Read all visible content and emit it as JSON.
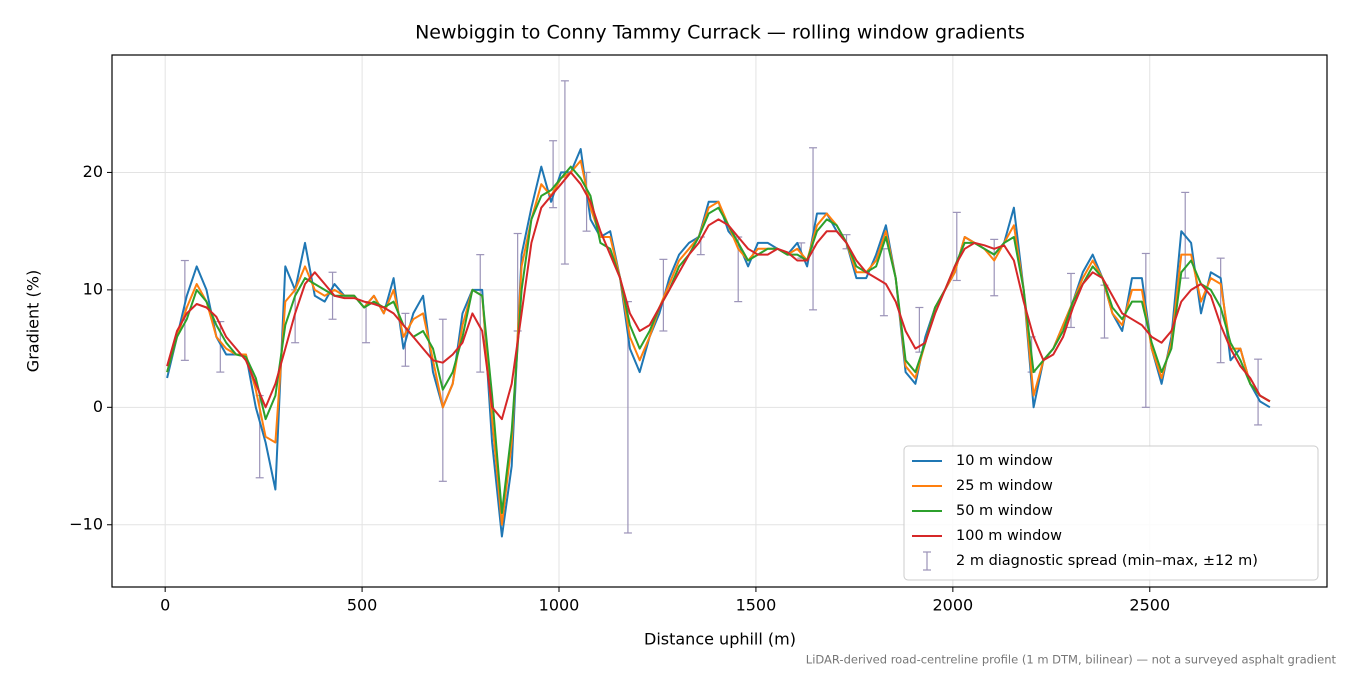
{
  "chart_data": {
    "type": "line",
    "title": "Newbiggin to Conny Tammy Currack — rolling window gradients",
    "x_label": "Distance uphill (m)",
    "y_label": "Gradient (%)",
    "footnote": "LiDAR-derived road-centreline profile (1 m DTM, bilinear) — not a surveyed asphalt gradient",
    "xlim": [
      -135,
      2950
    ],
    "ylim": [
      -15.3,
      30
    ],
    "xticks": [
      0,
      500,
      1000,
      1500,
      2000,
      2500
    ],
    "yticks": [
      {
        "value": -10,
        "label": "−10"
      },
      0,
      10,
      20
    ],
    "grid": true,
    "legend": "lower right",
    "x": [
      5,
      30,
      55,
      80,
      105,
      130,
      155,
      180,
      205,
      230,
      255,
      280,
      305,
      330,
      355,
      380,
      405,
      430,
      455,
      480,
      505,
      530,
      555,
      580,
      605,
      630,
      655,
      680,
      705,
      730,
      755,
      780,
      805,
      830,
      855,
      880,
      905,
      930,
      955,
      980,
      1005,
      1030,
      1055,
      1080,
      1105,
      1130,
      1155,
      1180,
      1205,
      1230,
      1255,
      1280,
      1305,
      1330,
      1355,
      1380,
      1405,
      1430,
      1455,
      1480,
      1505,
      1530,
      1555,
      1580,
      1605,
      1630,
      1655,
      1680,
      1705,
      1730,
      1755,
      1780,
      1805,
      1830,
      1855,
      1880,
      1905,
      1930,
      1955,
      1980,
      2005,
      2030,
      2055,
      2080,
      2105,
      2130,
      2155,
      2180,
      2205,
      2230,
      2255,
      2280,
      2305,
      2330,
      2355,
      2380,
      2405,
      2430,
      2455,
      2480,
      2505,
      2530,
      2555,
      2580,
      2605,
      2630,
      2655,
      2680,
      2705,
      2730,
      2755,
      2780,
      2805
    ],
    "series": [
      {
        "name": "10 m window",
        "color": "#1f77b4",
        "values": [
          2.5,
          6,
          9.5,
          12,
          10,
          6,
          4.5,
          4.5,
          4.5,
          0,
          -3,
          -7,
          12,
          10,
          14,
          9.5,
          9,
          10.5,
          9.5,
          9.5,
          8.5,
          9.5,
          8,
          11,
          5,
          8,
          9.5,
          3,
          0,
          2,
          8,
          10,
          10,
          -3,
          -11,
          -5,
          13,
          17,
          20.5,
          17.5,
          20,
          20,
          22,
          16,
          14.5,
          15,
          11,
          5,
          3,
          6,
          8,
          11,
          13,
          14,
          14.5,
          17.5,
          17.5,
          15,
          14,
          12,
          14,
          14,
          13.5,
          13,
          14,
          12,
          16.5,
          16.5,
          15,
          14,
          11,
          11,
          13,
          15.5,
          11,
          3,
          2,
          6,
          8.5,
          10,
          11.5,
          14.5,
          14,
          13.5,
          13,
          14,
          17,
          10,
          0,
          4,
          5,
          7,
          9,
          11.5,
          13,
          11,
          8,
          6.5,
          11,
          11,
          5,
          2,
          6,
          15,
          14,
          8,
          11.5,
          11,
          4,
          5,
          2,
          0.5,
          0
        ]
      },
      {
        "name": "25 m window",
        "color": "#ff7f0e",
        "values": [
          3,
          6,
          8.5,
          10.5,
          9,
          6,
          5,
          4.5,
          4.5,
          1.5,
          -2.5,
          -3,
          9,
          10,
          12,
          10,
          9.5,
          10,
          9.5,
          9.5,
          8.5,
          9.5,
          8,
          10,
          6,
          7.5,
          8,
          4,
          0,
          2,
          7,
          10,
          9.5,
          -1,
          -10,
          -3,
          12,
          16,
          19,
          18,
          19.5,
          20,
          21,
          17,
          14.5,
          14.5,
          11,
          6,
          4,
          6,
          8.5,
          10.5,
          12.5,
          13.5,
          14.5,
          17,
          17.5,
          15.5,
          13.5,
          12.5,
          13.5,
          13.5,
          13.5,
          13,
          13.5,
          12.5,
          15.5,
          16.5,
          15.5,
          14,
          11.5,
          11.5,
          12.5,
          15,
          11,
          3.5,
          2.5,
          5.5,
          8.5,
          10,
          11.5,
          14.5,
          14,
          13.5,
          12.5,
          14,
          15.5,
          10,
          1,
          4,
          5,
          7,
          9,
          11,
          12.5,
          11,
          8,
          7,
          10,
          10,
          5,
          2.5,
          5.5,
          13,
          13,
          9,
          11,
          10.5,
          5,
          5,
          2,
          1,
          0.5
        ]
      },
      {
        "name": "50 m window",
        "color": "#2ca02c",
        "values": [
          3,
          6,
          7.5,
          10,
          9,
          7,
          5.5,
          4.5,
          4.3,
          2.5,
          -1,
          1,
          7,
          9.5,
          11,
          10.5,
          10,
          9.5,
          9.5,
          9.5,
          8.5,
          9,
          8.5,
          9,
          7,
          6,
          6.5,
          5,
          1.5,
          3,
          6,
          10,
          9.5,
          1,
          -9,
          -2,
          10,
          16,
          18,
          18.5,
          19.5,
          20.5,
          19.5,
          18,
          14,
          13.5,
          11,
          7,
          5,
          6.5,
          8.5,
          10,
          12,
          13,
          14.5,
          16.5,
          17,
          15.5,
          14,
          12.5,
          13,
          13.5,
          13.5,
          13,
          13,
          12.5,
          15,
          16,
          15.5,
          14,
          12,
          11.5,
          12,
          14.5,
          11,
          4,
          3,
          5.5,
          8.5,
          10,
          12,
          14,
          14,
          13.5,
          13,
          14,
          14.5,
          10,
          3,
          4,
          5,
          6.5,
          9,
          10.5,
          12,
          11,
          8.5,
          7.5,
          9,
          9,
          5.5,
          3,
          5,
          11.5,
          12.5,
          10.5,
          10,
          8.5,
          5.5,
          4,
          2,
          1,
          0.5
        ]
      },
      {
        "name": "100 m window",
        "color": "#d62728",
        "values": [
          3.5,
          6.5,
          8,
          8.8,
          8.5,
          7.7,
          6,
          5,
          4,
          2,
          0,
          2,
          5,
          8,
          10.5,
          11.5,
          10.5,
          9.5,
          9.3,
          9.3,
          9,
          8.8,
          8.5,
          8,
          7,
          6,
          5,
          4,
          3.8,
          4.5,
          5.5,
          8,
          6.5,
          0,
          -1,
          2,
          8,
          14,
          17,
          18,
          19,
          20,
          19,
          17.5,
          15,
          13,
          11,
          8,
          6.5,
          7,
          8.5,
          10,
          11.5,
          13,
          14,
          15.5,
          16,
          15.5,
          14.5,
          13.5,
          13,
          13,
          13.5,
          13.2,
          12.5,
          12.5,
          14,
          15,
          15,
          14,
          12.5,
          11.5,
          11,
          10.5,
          9,
          6.5,
          5,
          5.5,
          8,
          10,
          12,
          13.5,
          14,
          13.8,
          13.5,
          13.8,
          12.5,
          9,
          6,
          4,
          4.5,
          6,
          8.5,
          10.5,
          11.5,
          11,
          9.5,
          8,
          7.5,
          7,
          6,
          5.5,
          6.5,
          9,
          10,
          10.5,
          9.5,
          7,
          5,
          3.5,
          2.5,
          1,
          0.5
        ]
      }
    ],
    "spread": {
      "name": "2 m diagnostic spread (min–max, ±12 m)",
      "color": "#9b93b8",
      "x": [
        50,
        140,
        240,
        330,
        425,
        510,
        610,
        705,
        800,
        895,
        985,
        1015,
        1070,
        1175,
        1265,
        1360,
        1455,
        1615,
        1645,
        1730,
        1825,
        1915,
        2010,
        2105,
        2200,
        2300,
        2385,
        2490,
        2590,
        2680,
        2775
      ],
      "low": [
        4,
        3,
        -6,
        5.5,
        7.5,
        5.5,
        3.5,
        -6.3,
        3,
        6.5,
        17,
        12.2,
        15,
        -10.7,
        6.5,
        13,
        9,
        12.7,
        8.3,
        13.5,
        7.8,
        4.7,
        10.8,
        9.5,
        3,
        6.8,
        5.9,
        0,
        11,
        3.8,
        -1.5
      ],
      "high": [
        12.5,
        7.3,
        1,
        10,
        11.5,
        9,
        8,
        7.5,
        13,
        14.8,
        22.7,
        27.8,
        20,
        9,
        12.6,
        14.5,
        14.5,
        14,
        22.1,
        14.7,
        13.5,
        8.5,
        16.6,
        14.3,
        6,
        11.4,
        10.4,
        13.1,
        18.3,
        12.7,
        4.1
      ]
    }
  }
}
